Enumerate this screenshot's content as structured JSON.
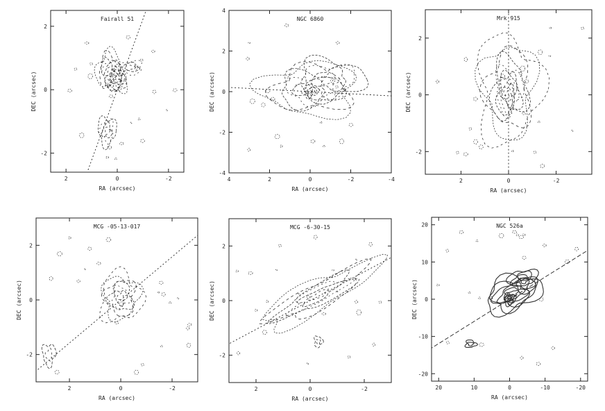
{
  "figure": {
    "colors": {
      "ink": "#222222",
      "contour": "#333333",
      "background": "#ffffff"
    }
  },
  "chart_data": [
    {
      "type": "contour",
      "title": "Fairall 51",
      "xlabel": "RA (arcsec)",
      "ylabel": "DEC (arcsec)",
      "xlim": [
        2.6,
        -2.6
      ],
      "ylim": [
        -2.6,
        2.5
      ],
      "xticks": [
        2,
        0,
        -2
      ],
      "yticks": [
        -2,
        0,
        2
      ],
      "axis_line": {
        "angle_deg": 70
      },
      "emission": [
        {
          "x": 0.3,
          "y": 0.6,
          "sx": 0.5,
          "sy": 0.6,
          "n": 6
        },
        {
          "x": 0.0,
          "y": 0.3,
          "sx": 0.4,
          "sy": 0.4,
          "n": 6
        },
        {
          "x": 0.4,
          "y": -1.3,
          "sx": 0.35,
          "sy": 0.45,
          "n": 4
        },
        {
          "x": -0.5,
          "y": 0.7,
          "sx": 0.5,
          "sy": 0.2,
          "n": 3
        }
      ]
    },
    {
      "type": "contour",
      "title": "NGC 6860",
      "xlabel": "RA (arcsec)",
      "ylabel": "DEC (arcsec)",
      "xlim": [
        4,
        -4
      ],
      "ylim": [
        -4,
        4
      ],
      "xticks": [
        4,
        2,
        0,
        -2,
        -4
      ],
      "yticks": [
        -4,
        -2,
        0,
        2,
        4
      ],
      "axis_line": {
        "angle_deg": -3
      },
      "emission": [
        {
          "x": 0.0,
          "y": 0.1,
          "sx": 2.3,
          "sy": 1.3,
          "n": 6
        },
        {
          "x": -1.0,
          "y": 0.6,
          "sx": 1.6,
          "sy": 1.0,
          "n": 4
        },
        {
          "x": 0.0,
          "y": 0.0,
          "sx": 0.3,
          "sy": 0.3,
          "n": 4
        }
      ]
    },
    {
      "type": "contour",
      "title": "Mrk 915",
      "xlabel": "RA (arcsec)",
      "ylabel": "DEC (arcsec)",
      "xlim": [
        3.5,
        -3.5
      ],
      "ylim": [
        -2.8,
        3.0
      ],
      "xticks": [
        2,
        0,
        -2
      ],
      "yticks": [
        -2,
        0,
        2
      ],
      "axis_line": {
        "angle_deg": 90
      },
      "emission": [
        {
          "x": 0.0,
          "y": 0.2,
          "sx": 1.3,
          "sy": 1.9,
          "n": 7
        },
        {
          "x": 0.0,
          "y": 0.0,
          "sx": 0.5,
          "sy": 0.7,
          "n": 4
        }
      ]
    },
    {
      "type": "contour",
      "title": "MCG -05-13-017",
      "xlabel": "RA (arcsec)",
      "ylabel": "DEC (arcsec)",
      "xlim": [
        3.3,
        -3.0
      ],
      "ylim": [
        -3.0,
        3.0
      ],
      "xticks": [
        2,
        0,
        -2
      ],
      "yticks": [
        -2,
        0,
        2
      ],
      "axis_line": {
        "angle_deg": 40
      },
      "emission": [
        {
          "x": 0.0,
          "y": 0.1,
          "sx": 0.8,
          "sy": 0.9,
          "n": 7
        },
        {
          "x": 2.8,
          "y": -2.0,
          "sx": 0.25,
          "sy": 0.4,
          "n": 2
        }
      ]
    },
    {
      "type": "contour",
      "title": "MCG -6-30-15",
      "xlabel": "RA (arcsec)",
      "ylabel": "DEC (arcsec)",
      "xlim": [
        3.0,
        -3.0
      ],
      "ylim": [
        -3.0,
        3.0
      ],
      "xticks": [
        2,
        0,
        -2
      ],
      "yticks": [
        -2,
        0,
        2
      ],
      "axis_line": {
        "angle_deg": 28
      },
      "emission": [
        {
          "x": -0.3,
          "y": 0.2,
          "sx": 2.4,
          "sy": 0.55,
          "n": 6,
          "rot": 28
        },
        {
          "x": -0.3,
          "y": -1.5,
          "sx": 0.15,
          "sy": 0.2,
          "n": 2
        }
      ]
    },
    {
      "type": "contour",
      "title": "NGC 526a",
      "xlabel": "RA (arcsec)",
      "ylabel": "DEC (arcsec)",
      "xlim": [
        22,
        -22
      ],
      "ylim": [
        -22,
        22
      ],
      "xticks": [
        20,
        10,
        0,
        -10,
        -20
      ],
      "yticks": [
        -20,
        -10,
        0,
        10,
        20
      ],
      "axis_line": {
        "angle_deg": 32
      },
      "emission": [
        {
          "x": -1.0,
          "y": 1.5,
          "sx": 8.0,
          "sy": 4.5,
          "n": 6,
          "rot": 20
        },
        {
          "x": -4.0,
          "y": 5.0,
          "sx": 4.0,
          "sy": 3.0,
          "n": 4
        },
        {
          "x": 0.0,
          "y": 0.0,
          "sx": 1.6,
          "sy": 1.6,
          "n": 5
        },
        {
          "x": 11.0,
          "y": -12.0,
          "sx": 1.5,
          "sy": 1.0,
          "n": 2
        }
      ],
      "solid_contours": true
    }
  ]
}
